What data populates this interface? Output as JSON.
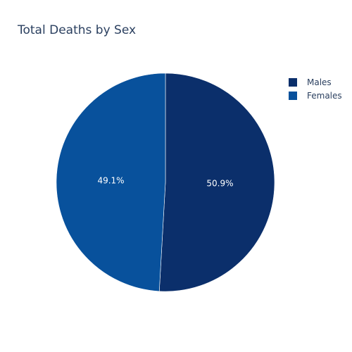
{
  "chart_data": {
    "type": "pie",
    "title": "Total Deaths by Sex",
    "categories": [
      "Males",
      "Females"
    ],
    "values": [
      50.9,
      49.1
    ],
    "labels": [
      "50.9%",
      "49.1%"
    ],
    "colors": [
      "#0b2f6b",
      "#08519c"
    ],
    "legend_position": "top-right",
    "sort": "clockwise-from-top"
  }
}
